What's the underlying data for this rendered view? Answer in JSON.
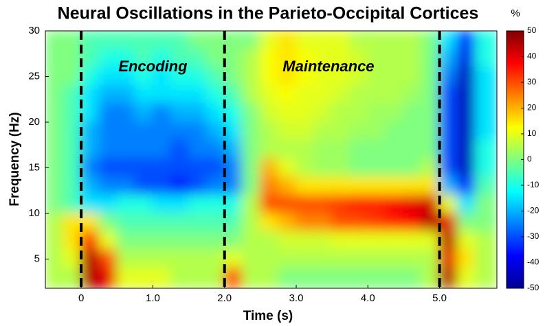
{
  "chart_data": {
    "type": "heatmap",
    "title": "Neural Oscillations in the Parieto-Occipital Cortices",
    "x_label": "Time (s)",
    "y_label": "Frequency (Hz)",
    "colorbar_label": "%",
    "annotations": [
      "Encoding",
      "Maintenance"
    ],
    "colormap": "jet",
    "xlim": [
      -0.5,
      5.8
    ],
    "ylim": [
      1.8,
      30
    ],
    "xticks": [
      0,
      {
        "value": 1,
        "label": "1.0"
      },
      {
        "value": 2,
        "label": "2.0"
      },
      {
        "value": 3,
        "label": "3.0"
      },
      {
        "value": 4,
        "label": "4.0"
      },
      {
        "value": 5,
        "label": "5.0"
      }
    ],
    "yticks": [
      5,
      10,
      15,
      20,
      25,
      30
    ],
    "markers": [
      0,
      2,
      5
    ],
    "clim": [
      -50,
      50
    ],
    "cticks": [
      -50,
      -40,
      -30,
      -20,
      -10,
      0,
      10,
      20,
      30,
      40,
      50
    ],
    "x": [
      -0.375,
      -0.125,
      0.125,
      0.375,
      0.625,
      0.875,
      1.125,
      1.375,
      1.625,
      1.875,
      2.125,
      2.375,
      2.625,
      2.875,
      3.125,
      3.375,
      3.625,
      3.875,
      4.125,
      4.375,
      4.625,
      4.875,
      5.125,
      5.375,
      5.625
    ],
    "y": [
      29,
      27,
      25,
      23,
      21,
      19,
      17,
      15,
      13,
      11,
      9,
      7,
      5,
      3
    ],
    "z": [
      [
        0,
        0,
        -5,
        -5,
        -5,
        -5,
        -5,
        -5,
        0,
        0,
        0,
        0,
        10,
        15,
        10,
        10,
        10,
        5,
        5,
        5,
        5,
        0,
        -15,
        -35,
        -10
      ],
      [
        0,
        0,
        -5,
        -10,
        -10,
        -5,
        -10,
        -5,
        -5,
        0,
        0,
        5,
        12,
        15,
        12,
        10,
        10,
        8,
        5,
        5,
        5,
        0,
        -20,
        -40,
        -10
      ],
      [
        0,
        0,
        -10,
        -15,
        -15,
        -10,
        -15,
        -10,
        -10,
        -5,
        0,
        5,
        12,
        15,
        12,
        10,
        10,
        8,
        5,
        5,
        5,
        0,
        -25,
        -45,
        -15
      ],
      [
        0,
        -5,
        -15,
        -20,
        -20,
        -15,
        -15,
        -15,
        -15,
        -10,
        -5,
        5,
        10,
        12,
        10,
        10,
        8,
        5,
        5,
        5,
        3,
        0,
        -30,
        -45,
        -15
      ],
      [
        0,
        -5,
        -15,
        -25,
        -25,
        -20,
        -25,
        -20,
        -20,
        -15,
        -10,
        0,
        8,
        10,
        10,
        8,
        5,
        5,
        3,
        3,
        0,
        0,
        -30,
        -45,
        -15
      ],
      [
        0,
        -5,
        -20,
        -25,
        -25,
        -25,
        -25,
        -25,
        -25,
        -20,
        -15,
        0,
        5,
        8,
        8,
        5,
        5,
        3,
        3,
        0,
        0,
        0,
        -30,
        -45,
        -15
      ],
      [
        0,
        -5,
        -20,
        -25,
        -25,
        -25,
        -25,
        -30,
        -25,
        -25,
        -20,
        0,
        5,
        5,
        5,
        3,
        3,
        0,
        0,
        0,
        0,
        0,
        -30,
        -45,
        -10
      ],
      [
        0,
        -5,
        -25,
        -30,
        -30,
        -30,
        -30,
        -30,
        -30,
        -30,
        -25,
        0,
        20,
        10,
        5,
        3,
        3,
        0,
        0,
        0,
        0,
        5,
        -30,
        -45,
        -10
      ],
      [
        0,
        -5,
        -20,
        -25,
        -25,
        -30,
        -30,
        -35,
        -30,
        -25,
        -25,
        0,
        25,
        20,
        15,
        15,
        15,
        15,
        15,
        15,
        15,
        15,
        -20,
        -35,
        -5
      ],
      [
        0,
        -5,
        -15,
        -15,
        -10,
        -10,
        -15,
        -15,
        -10,
        -10,
        -10,
        5,
        30,
        30,
        30,
        30,
        32,
        35,
        35,
        38,
        40,
        42,
        10,
        -15,
        0
      ],
      [
        5,
        15,
        15,
        0,
        -5,
        -5,
        -5,
        -5,
        -5,
        -5,
        -5,
        5,
        15,
        20,
        25,
        25,
        30,
        30,
        32,
        35,
        38,
        45,
        40,
        0,
        0
      ],
      [
        5,
        15,
        35,
        10,
        0,
        0,
        0,
        0,
        0,
        0,
        0,
        5,
        5,
        8,
        8,
        8,
        10,
        10,
        10,
        10,
        10,
        10,
        45,
        10,
        5
      ],
      [
        5,
        10,
        45,
        30,
        5,
        5,
        5,
        5,
        5,
        5,
        10,
        5,
        5,
        5,
        5,
        5,
        5,
        5,
        5,
        5,
        5,
        5,
        40,
        15,
        5
      ],
      [
        5,
        5,
        45,
        40,
        10,
        10,
        10,
        5,
        5,
        5,
        30,
        5,
        5,
        0,
        0,
        0,
        0,
        0,
        0,
        0,
        0,
        5,
        45,
        10,
        5
      ]
    ]
  }
}
